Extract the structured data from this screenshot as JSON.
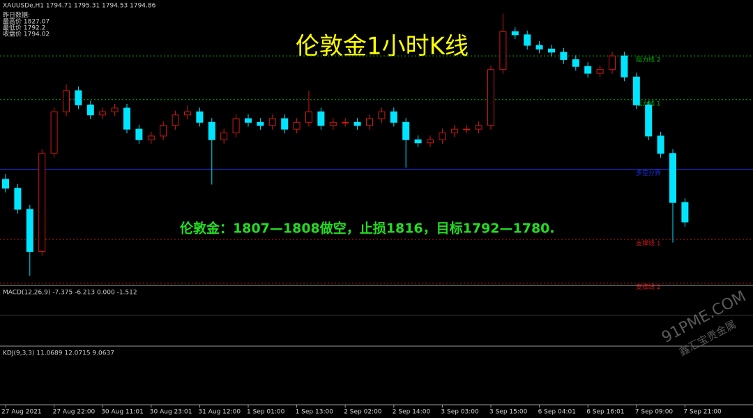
{
  "header": {
    "symbol_line": "XAUUSDe,H1  1794.71 1795.31 1794.53 1794.86",
    "yesterday": "昨日数据:",
    "high": "最高价 1827.07",
    "low": "最低价 1792.2",
    "close": "收盘价 1794.02"
  },
  "chart_data": {
    "type": "candlestick",
    "title": "伦敦金1小时K线",
    "annotation": "伦敦金：1807—1808做空，止损1816，目标1792—1780.",
    "categories": [
      "27 Aug 2021",
      null,
      null,
      null,
      "27 Aug 22:00",
      null,
      null,
      null,
      "30 Aug 11:01",
      null,
      null,
      null,
      "30 Aug 23:01",
      null,
      null,
      null,
      "31 Aug 12:00",
      null,
      null,
      null,
      "1 Sep 01:00",
      null,
      null,
      null,
      "1 Sep 13:00",
      null,
      null,
      null,
      "2 Sep 02:00",
      null,
      null,
      null,
      "2 Sep 14:00",
      null,
      null,
      null,
      "3 Sep 03:00",
      null,
      null,
      null,
      "3 Sep 15:00",
      null,
      null,
      null,
      "6 Sep 04:01",
      null,
      null,
      null,
      "6 Sep 16:01",
      null,
      null,
      null,
      "7 Sep 09:00",
      null,
      null,
      null,
      "7 Sep 21:00"
    ],
    "open": [
      1803.0,
      1801.3,
      1797.3,
      1789.3,
      1807.9,
      1815.8,
      1819.8,
      1817.1,
      1815.2,
      1815.8,
      1816.5,
      1812.5,
      1810.5,
      1811.2,
      1813.2,
      1815.2,
      1815.8,
      1813.8,
      1810.5,
      1811.8,
      1814.5,
      1813.8,
      1813.2,
      1814.5,
      1812.5,
      1813.8,
      1815.8,
      1813.2,
      1813.8,
      1813.8,
      1813.2,
      1814.5,
      1815.8,
      1813.8,
      1810.5,
      1809.9,
      1810.5,
      1811.8,
      1812.5,
      1812.5,
      1813.2,
      1823.8,
      1831.0,
      1830.4,
      1828.4,
      1827.7,
      1827.1,
      1825.7,
      1824.4,
      1823.1,
      1823.8,
      1826.4,
      1822.4,
      1817.1,
      1811.2,
      1807.9,
      1798.6
    ],
    "high": [
      1804.0,
      1802.1,
      1798.1,
      1808.7,
      1816.6,
      1821.0,
      1820.6,
      1817.9,
      1816.6,
      1817.3,
      1817.3,
      1813.3,
      1812.0,
      1814.0,
      1816.0,
      1817.0,
      1816.6,
      1814.6,
      1812.6,
      1815.3,
      1815.3,
      1814.6,
      1815.3,
      1815.3,
      1814.6,
      1819.8,
      1816.6,
      1814.6,
      1814.6,
      1814.6,
      1815.3,
      1816.6,
      1816.6,
      1814.6,
      1811.3,
      1811.3,
      1812.6,
      1813.3,
      1813.3,
      1814.0,
      1824.6,
      1834.4,
      1831.8,
      1831.2,
      1829.2,
      1828.5,
      1827.9,
      1826.5,
      1825.2,
      1824.6,
      1827.2,
      1827.2,
      1823.2,
      1817.9,
      1812.0,
      1808.7,
      1799.4
    ],
    "low": [
      1800.5,
      1796.5,
      1784.7,
      1788.5,
      1807.1,
      1815.0,
      1816.3,
      1814.4,
      1814.4,
      1815.0,
      1811.7,
      1809.7,
      1809.7,
      1810.4,
      1812.4,
      1814.4,
      1813.0,
      1802.0,
      1809.7,
      1811.0,
      1813.0,
      1812.4,
      1812.4,
      1811.7,
      1811.7,
      1813.0,
      1812.4,
      1812.4,
      1813.0,
      1812.4,
      1812.4,
      1813.7,
      1813.0,
      1805.2,
      1809.1,
      1809.1,
      1809.7,
      1811.0,
      1811.7,
      1811.7,
      1812.4,
      1823.0,
      1829.6,
      1827.6,
      1826.9,
      1826.3,
      1824.9,
      1823.6,
      1822.3,
      1822.3,
      1823.0,
      1821.6,
      1816.3,
      1810.4,
      1807.1,
      1791.0,
      1794.0
    ],
    "close": [
      1801.3,
      1797.3,
      1789.3,
      1807.9,
      1815.8,
      1819.8,
      1817.1,
      1815.2,
      1815.8,
      1816.5,
      1812.5,
      1810.5,
      1811.2,
      1813.2,
      1815.2,
      1815.8,
      1813.8,
      1810.5,
      1811.8,
      1814.5,
      1813.8,
      1813.2,
      1814.5,
      1812.5,
      1813.8,
      1815.8,
      1813.2,
      1813.8,
      1813.8,
      1813.2,
      1814.5,
      1815.8,
      1813.8,
      1810.5,
      1809.9,
      1810.5,
      1811.8,
      1812.5,
      1812.5,
      1813.2,
      1823.8,
      1831.0,
      1830.4,
      1828.4,
      1827.7,
      1827.1,
      1825.7,
      1824.4,
      1823.1,
      1823.8,
      1826.4,
      1822.4,
      1817.1,
      1811.2,
      1807.9,
      1798.6,
      1794.9
    ],
    "up_color": "#d01818",
    "down_color": "#00e5ff",
    "ylim": [
      1783,
      1837
    ],
    "levels": [
      {
        "label": "阻力线 2",
        "value": 1826.4,
        "color": "#00b000",
        "dashed": true
      },
      {
        "label": "阻力线 1",
        "value": 1818.1,
        "color": "#00b000",
        "dashed": true
      },
      {
        "label": "多空分界",
        "value": 1804.9,
        "color": "#1a2ee8",
        "dashed": false
      },
      {
        "label": "支撑线 1",
        "value": 1791.6,
        "color": "#d01818",
        "dashed": true
      },
      {
        "label": "支撑线 2",
        "value": 1783.3,
        "color": "#d01818",
        "dashed": true
      }
    ]
  },
  "indicators": {
    "macd": "MACD(12,26,9) -7.375 -6.213 0.000 -1.512",
    "kdj": "KDJ(9,3,3) 11.0689 12.0715 9.0637"
  },
  "watermark": {
    "site": "91PME.COM",
    "name": "鑫汇宝贵金属"
  }
}
